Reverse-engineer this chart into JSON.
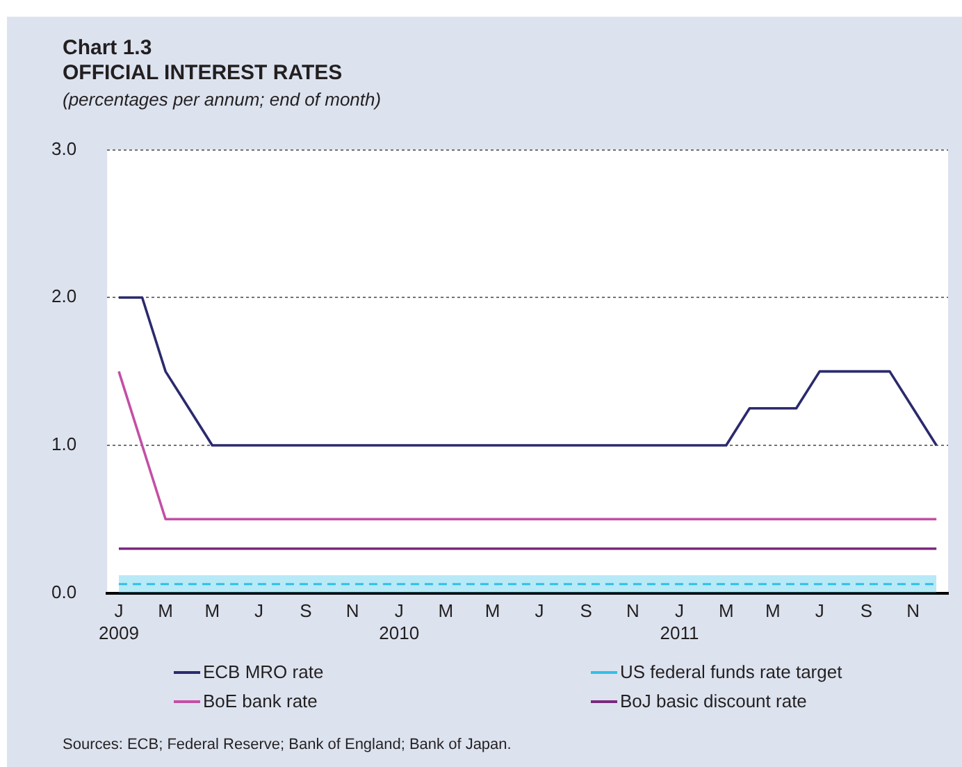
{
  "chart_data": {
    "type": "line",
    "title": "Chart 1.3\nOFFICIAL INTEREST RATES",
    "subtitle": "(percentages per annum; end of month)",
    "categories": [
      "J\n2009",
      null,
      "M",
      null,
      "M",
      null,
      "J",
      null,
      "S",
      null,
      "N",
      null,
      "J\n2010",
      null,
      "M",
      null,
      "M",
      null,
      "J",
      null,
      "S",
      null,
      "N",
      null,
      "J\n2011",
      null,
      "M",
      null,
      "M",
      null,
      "J",
      null,
      "S",
      null,
      "N",
      null
    ],
    "series": [
      {
        "name": "ECB MRO rate",
        "color": "#2b2a6e",
        "values": [
          2.0,
          2.0,
          1.5,
          1.25,
          1.0,
          1.0,
          1.0,
          1.0,
          1.0,
          1.0,
          1.0,
          1.0,
          1.0,
          1.0,
          1.0,
          1.0,
          1.0,
          1.0,
          1.0,
          1.0,
          1.0,
          1.0,
          1.0,
          1.0,
          1.0,
          1.0,
          1.0,
          1.25,
          1.25,
          1.25,
          1.5,
          1.5,
          1.5,
          1.5,
          1.25,
          1.0
        ]
      },
      {
        "name": "BoE bank rate",
        "color": "#c44fa5",
        "values": [
          1.5,
          1.0,
          0.5,
          0.5,
          0.5,
          0.5,
          0.5,
          0.5,
          0.5,
          0.5,
          0.5,
          0.5,
          0.5,
          0.5,
          0.5,
          0.5,
          0.5,
          0.5,
          0.5,
          0.5,
          0.5,
          0.5,
          0.5,
          0.5,
          0.5,
          0.5,
          0.5,
          0.5,
          0.5,
          0.5,
          0.5,
          0.5,
          0.5,
          0.5,
          0.5,
          0.5
        ]
      },
      {
        "name": "BoJ basic discount rate",
        "color": "#7a2a7e",
        "values": [
          0.3,
          0.3,
          0.3,
          0.3,
          0.3,
          0.3,
          0.3,
          0.3,
          0.3,
          0.3,
          0.3,
          0.3,
          0.3,
          0.3,
          0.3,
          0.3,
          0.3,
          0.3,
          0.3,
          0.3,
          0.3,
          0.3,
          0.3,
          0.3,
          0.3,
          0.3,
          0.3,
          0.3,
          0.3,
          0.3,
          0.3,
          0.3,
          0.3,
          0.3,
          0.3,
          0.3
        ]
      },
      {
        "name": "US federal funds rate target",
        "color": "#33bfe8",
        "line_style": "dashed",
        "values": [
          0.06,
          0.06,
          0.06,
          0.06,
          0.06,
          0.06,
          0.06,
          0.06,
          0.06,
          0.06,
          0.06,
          0.06,
          0.06,
          0.06,
          0.06,
          0.06,
          0.06,
          0.06,
          0.06,
          0.06,
          0.06,
          0.06,
          0.06,
          0.06,
          0.06,
          0.06,
          0.06,
          0.06,
          0.06,
          0.06,
          0.06,
          0.06,
          0.06,
          0.06,
          0.06,
          0.06
        ],
        "lower": [
          0,
          0,
          0,
          0,
          0,
          0,
          0,
          0,
          0,
          0,
          0,
          0,
          0,
          0,
          0,
          0,
          0,
          0,
          0,
          0,
          0,
          0,
          0,
          0,
          0,
          0,
          0,
          0,
          0,
          0,
          0,
          0,
          0,
          0,
          0,
          0
        ],
        "upper": [
          0.12,
          0.12,
          0.12,
          0.12,
          0.12,
          0.12,
          0.12,
          0.12,
          0.12,
          0.12,
          0.12,
          0.12,
          0.12,
          0.12,
          0.12,
          0.12,
          0.12,
          0.12,
          0.12,
          0.12,
          0.12,
          0.12,
          0.12,
          0.12,
          0.12,
          0.12,
          0.12,
          0.12,
          0.12,
          0.12,
          0.12,
          0.12,
          0.12,
          0.12,
          0.12,
          0.12
        ]
      }
    ],
    "ylim": [
      0,
      3
    ],
    "yticks": [
      {
        "value": 0,
        "label": "0.0"
      },
      {
        "value": 1,
        "label": "1.0"
      },
      {
        "value": 2,
        "label": "2.0"
      },
      {
        "value": 3,
        "label": "3.0"
      }
    ],
    "grid": "y",
    "legend": "bottom",
    "marker": "none",
    "line_style": "solid",
    "annotations": [
      "Sources: ECB; Federal Reserve; Bank of England; Bank of Japan."
    ]
  }
}
